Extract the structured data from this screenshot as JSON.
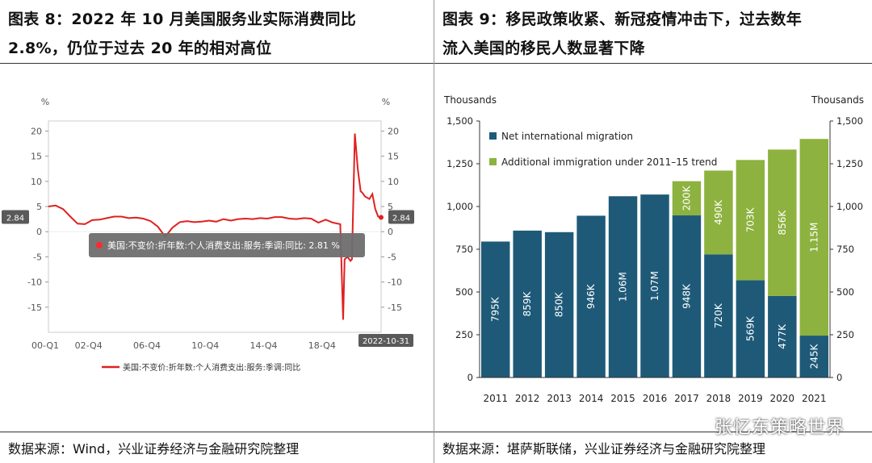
{
  "left": {
    "title_prefix": "图表 8：",
    "title_line1": "2022 年 10 月美国服务业实际消费同比",
    "title_line2": "2.8%，仍位于过去 20 年的相对高位",
    "source": "数据来源：Wind，兴业证券经济与金融研究院整理"
  },
  "right": {
    "title_line1": "图表 9：移民政策收紧、新冠疫情冲击下，过去数年",
    "title_line2": "流入美国的移民人数显著下降",
    "source": "数据来源：堪萨斯联储，兴业证券经济与金融研究院整理"
  },
  "watermark": "张忆东策略世界",
  "chart_data": [
    {
      "type": "line",
      "unit_left": "%",
      "unit_right": "%",
      "x_ticks": [
        "00-Q1",
        "02-Q4",
        "06-Q4",
        "10-Q4",
        "14-Q4",
        "18-Q4"
      ],
      "ylim": [
        -20,
        22
      ],
      "y_ticks": [
        20,
        15,
        10,
        5,
        0,
        -5,
        -10,
        -15
      ],
      "last_value_label": "2.84",
      "end_date": "2022-10-31",
      "tooltip": "美国:不变价:折年数:个人消费支出:服务:季调:同比: 2.81 %",
      "legend": "美国:不变价:折年数:个人消费支出:服务:季调:同比",
      "line_color": "#e02020",
      "series": {
        "name": "美国:不变价:折年数:个人消费支出:服务:季调:同比",
        "x": [
          0,
          0.5,
          1,
          1.5,
          2,
          2.5,
          3,
          3.5,
          4,
          4.5,
          5,
          5.5,
          6,
          6.5,
          7,
          7.5,
          8,
          8.5,
          9,
          9.5,
          10,
          10.5,
          11,
          11.5,
          12,
          12.5,
          13,
          13.5,
          14,
          14.5,
          15,
          15.5,
          16,
          16.5,
          17,
          17.5,
          18,
          18.5,
          19,
          19.5,
          20,
          20.2,
          20.3,
          20.5,
          20.7,
          20.8,
          21,
          21.2,
          21.4,
          21.5,
          21.7,
          22,
          22.2,
          22.4,
          22.6,
          22.8
        ],
        "y": [
          5.0,
          5.2,
          4.5,
          3.0,
          1.6,
          1.5,
          2.3,
          2.4,
          2.7,
          3.0,
          3.0,
          2.7,
          2.8,
          2.6,
          2.1,
          1.0,
          -1.0,
          0.8,
          1.9,
          2.1,
          1.9,
          2.0,
          2.2,
          2.0,
          2.5,
          2.2,
          2.5,
          2.6,
          2.5,
          2.7,
          2.6,
          2.9,
          2.9,
          2.6,
          2.5,
          2.7,
          2.6,
          1.8,
          2.4,
          1.8,
          1.5,
          -17.5,
          -5.5,
          -5.0,
          -5.8,
          -5.5,
          19.5,
          12.5,
          8.0,
          7.8,
          7.0,
          6.5,
          7.5,
          4.5,
          3.0,
          2.84
        ]
      }
    },
    {
      "type": "bar",
      "stacked": true,
      "ylabel_left": "Thousands",
      "ylabel_right": "Thousands",
      "ylim": [
        0,
        1500
      ],
      "y_ticks": [
        0,
        250,
        500,
        750,
        "1,000",
        "1,250",
        "1,500"
      ],
      "categories": [
        "2011",
        "2012",
        "2013",
        "2014",
        "2015",
        "2016",
        "2017",
        "2018",
        "2019",
        "2020",
        "2021"
      ],
      "series": [
        {
          "name": "Net international migration",
          "color": "#1e5a78",
          "values": [
            795,
            859,
            850,
            946,
            1060,
            1070,
            948,
            720,
            569,
            477,
            245
          ],
          "labels": [
            "795K",
            "859K",
            "850K",
            "946K",
            "1.06M",
            "1.07M",
            "948K",
            "720K",
            "569K",
            "477K",
            "245K"
          ]
        },
        {
          "name": "Additional immigration under 2011–15 trend",
          "color": "#8db23f",
          "values": [
            0,
            0,
            0,
            0,
            0,
            0,
            200,
            490,
            703,
            856,
            1150
          ],
          "labels": [
            "",
            "",
            "",
            "",
            "",
            "",
            "200K",
            "490K",
            "703K",
            "856K",
            "1.15M"
          ]
        }
      ]
    }
  ]
}
